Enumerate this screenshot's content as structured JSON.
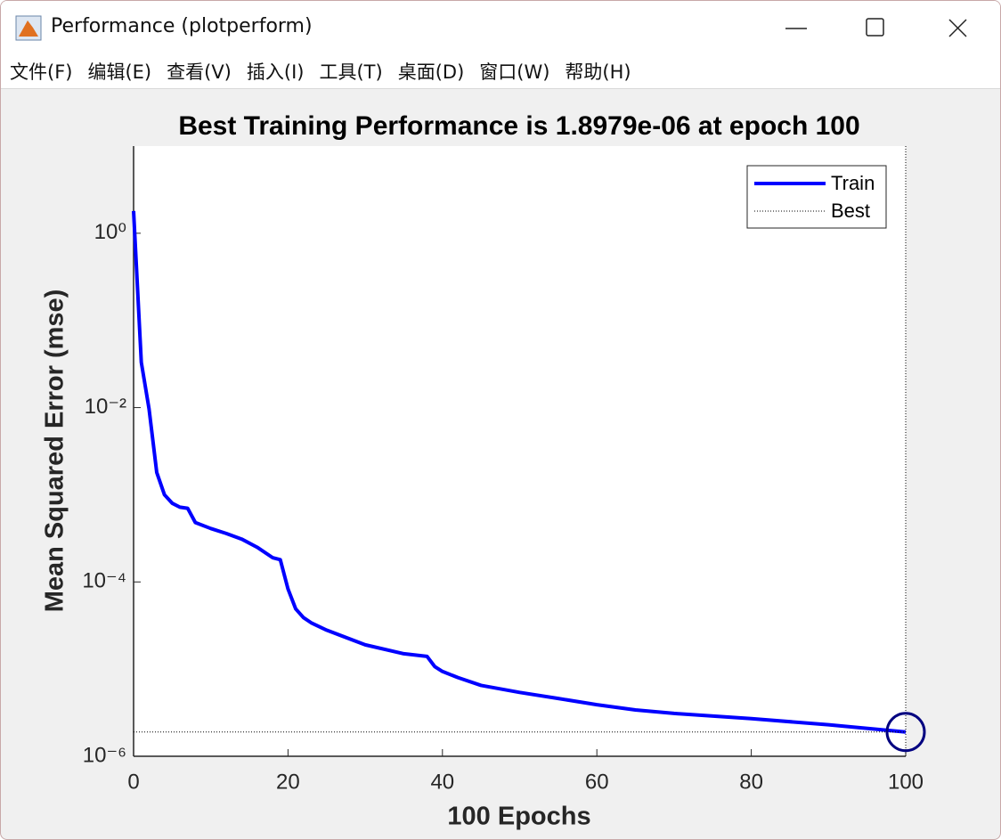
{
  "window_title": "Performance (plotperform)",
  "menu": [
    "文件(F)",
    "编辑(E)",
    "查看(V)",
    "插入(I)",
    "工具(T)",
    "桌面(D)",
    "窗口(W)",
    "帮助(H)"
  ],
  "chart_data": {
    "type": "line",
    "title": "Best Training Performance is 1.8979e-06 at epoch 100",
    "x_label": "100 Epochs",
    "y_label": "Mean Squared Error  (mse)",
    "yscale": "log",
    "grid": false,
    "legend": "upper right",
    "xlim": [
      0,
      100
    ],
    "xticks": [
      0,
      20,
      40,
      60,
      80,
      100
    ],
    "ylim": [
      1e-06,
      10
    ],
    "yticks": [
      {
        "value": 1e-06,
        "label": "10⁻⁶"
      },
      {
        "value": 0.0001,
        "label": "10⁻⁴"
      },
      {
        "value": 0.01,
        "label": "10⁻²"
      },
      {
        "value": 1,
        "label": "10⁰"
      }
    ],
    "series": [
      {
        "name": "Train",
        "color": "#0000ff",
        "x": [
          0,
          1,
          2,
          3,
          4,
          5,
          6,
          7,
          8,
          10,
          12,
          14,
          16,
          18,
          19,
          20,
          21,
          22,
          23,
          25,
          30,
          35,
          38,
          39,
          40,
          42,
          45,
          50,
          55,
          60,
          65,
          70,
          80,
          90,
          100
        ],
        "values": [
          1.8,
          0.033,
          0.0097,
          0.0018,
          0.001,
          0.0008,
          0.00072,
          0.0007,
          0.00048,
          0.00041,
          0.00036,
          0.00031,
          0.00025,
          0.00019,
          0.00018,
          8.3e-05,
          4.9e-05,
          3.9e-05,
          3.4e-05,
          2.8e-05,
          1.9e-05,
          1.5e-05,
          1.4e-05,
          1.07e-05,
          9.4e-06,
          8e-06,
          6.5e-06,
          5.4e-06,
          4.6e-06,
          3.9e-06,
          3.4e-06,
          3.1e-06,
          2.7e-06,
          2.3e-06,
          1.8979e-06
        ]
      },
      {
        "name": "Best",
        "color": "#000000",
        "marker_color": "#000080",
        "x": [
          100
        ],
        "values": [
          1.8979e-06
        ]
      }
    ]
  }
}
